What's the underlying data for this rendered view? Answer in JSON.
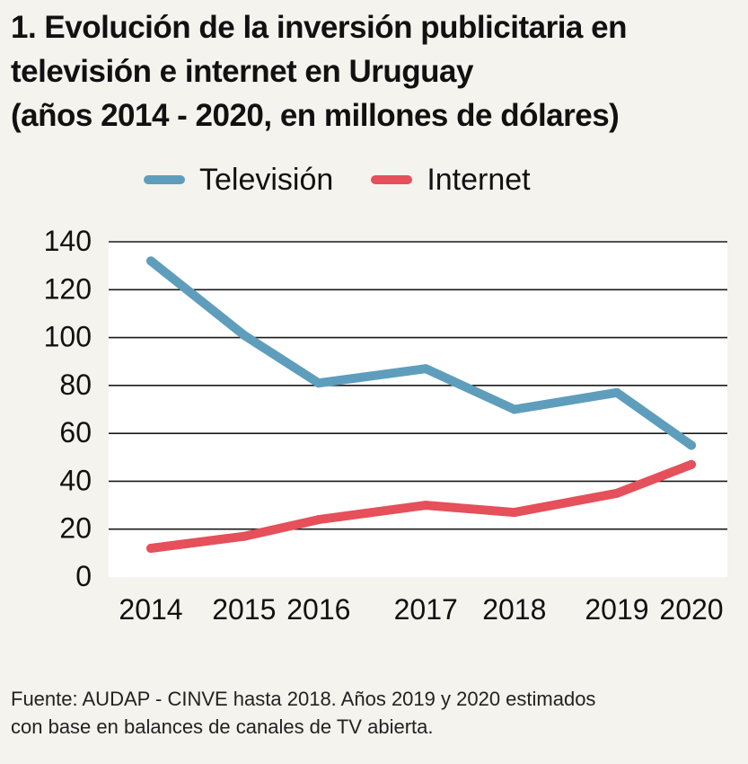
{
  "header": {
    "title_lines": [
      "1. Evolución de la inversión publicitaria en",
      "televisión e internet en Uruguay",
      "(años 2014 - 2020, en millones de dólares)"
    ]
  },
  "legend": {
    "tv": "Televisión",
    "internet": "Internet"
  },
  "chart_data": {
    "type": "line",
    "title": "1. Evolución de la inversión publicitaria en televisión e internet en Uruguay (años 2014 - 2020, en millones de dólares)",
    "xlabel": "",
    "ylabel": "",
    "categories": [
      "2014",
      "2015",
      "2016",
      "2017",
      "2018",
      "2019",
      "2020"
    ],
    "x_positions": [
      2014.0,
      2015.0,
      2015.8,
      2016.95,
      2017.9,
      2019.0,
      2019.8
    ],
    "ylim": [
      0,
      140
    ],
    "yticks": [
      0,
      20,
      40,
      60,
      80,
      100,
      120,
      140
    ],
    "grid": true,
    "legend_position": "top",
    "series": [
      {
        "name": "Televisión",
        "color": "#5e9ebc",
        "values": [
          132,
          101,
          81,
          87,
          70,
          77,
          55
        ]
      },
      {
        "name": "Internet",
        "color": "#e5505a",
        "values": [
          12,
          17,
          24,
          30,
          27,
          35,
          47
        ]
      }
    ]
  },
  "footer": {
    "source_lines": [
      "Fuente: AUDAP - CINVE hasta 2018. Años 2019 y 2020 estimados",
      "con base en balances de canales de TV abierta."
    ]
  }
}
